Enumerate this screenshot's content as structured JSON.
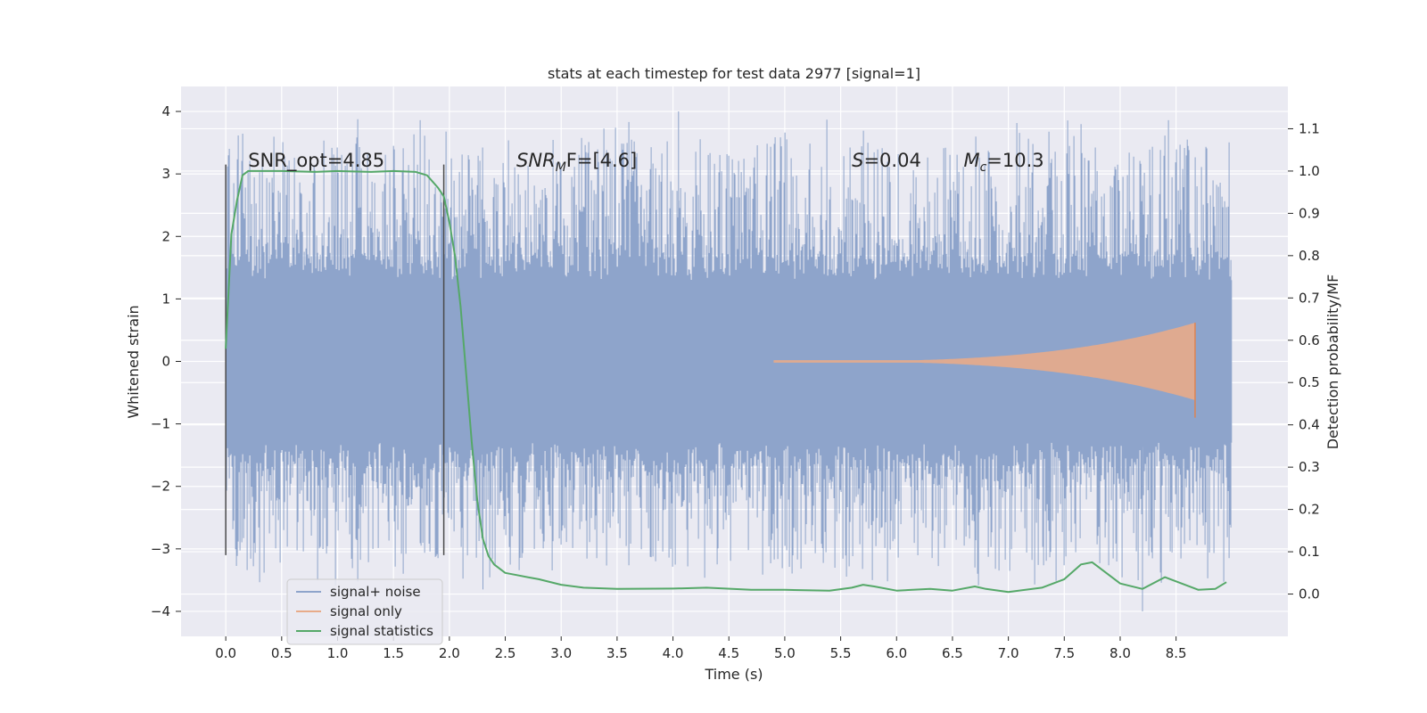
{
  "chart_data": {
    "type": "line",
    "title": "stats at each timestep for test data 2977 [signal=1]",
    "xlabel": "Time (s)",
    "ylabel": "Whitened strain",
    "y2label": "Detection probability/MF",
    "xlim": [
      -0.4,
      9.5
    ],
    "ylim": [
      -4.4,
      4.4
    ],
    "y2lim": [
      -0.1,
      1.2
    ],
    "xticks": [
      "0.0",
      "0.5",
      "1.0",
      "1.5",
      "2.0",
      "2.5",
      "3.0",
      "3.5",
      "4.0",
      "4.5",
      "5.0",
      "5.5",
      "6.0",
      "6.5",
      "7.0",
      "7.5",
      "8.0",
      "8.5"
    ],
    "yticks": [
      "4",
      "3",
      "2",
      "1",
      "0",
      "−1",
      "−2",
      "−3",
      "−4"
    ],
    "y2ticks": [
      "1.1",
      "1.0",
      "0.9",
      "0.8",
      "0.7",
      "0.6",
      "0.5",
      "0.4",
      "0.3",
      "0.2",
      "0.1",
      "0.0"
    ],
    "noise_range": [
      0.0,
      9.0
    ],
    "noise_band": 1.3,
    "noise_peaks_pos": 4.0,
    "noise_peaks_neg": -4.0,
    "signal_only": {
      "start": 4.9,
      "merger": 8.67,
      "peak_amplitude": 0.62,
      "min_at_merger": -0.9
    },
    "window_lines": [
      0.0,
      1.95
    ],
    "window_y_range": [
      -3.1,
      3.15
    ],
    "series": [
      {
        "name": "signal+ noise",
        "color": "#8ea4cb"
      },
      {
        "name": "signal only",
        "color": "#dd8452"
      },
      {
        "name": "signal statistics",
        "color": "#55a868",
        "x": [
          0.0,
          0.05,
          0.1,
          0.15,
          0.2,
          0.3,
          0.5,
          0.8,
          1.0,
          1.3,
          1.5,
          1.7,
          1.8,
          1.9,
          1.95,
          2.0,
          2.05,
          2.1,
          2.15,
          2.2,
          2.25,
          2.3,
          2.35,
          2.4,
          2.5,
          2.6,
          2.7,
          2.8,
          3.0,
          3.2,
          3.5,
          4.0,
          4.3,
          4.7,
          5.0,
          5.4,
          5.6,
          5.7,
          5.8,
          6.0,
          6.3,
          6.5,
          6.7,
          6.8,
          7.0,
          7.3,
          7.5,
          7.65,
          7.75,
          7.85,
          8.0,
          8.2,
          8.4,
          8.5,
          8.7,
          8.85,
          8.95
        ],
        "y": [
          0.58,
          0.85,
          0.93,
          0.99,
          1.0,
          1.0,
          1.0,
          0.998,
          1.0,
          0.998,
          1.0,
          0.998,
          0.99,
          0.96,
          0.94,
          0.88,
          0.8,
          0.68,
          0.52,
          0.36,
          0.22,
          0.13,
          0.09,
          0.07,
          0.05,
          0.045,
          0.04,
          0.035,
          0.022,
          0.015,
          0.012,
          0.013,
          0.015,
          0.01,
          0.01,
          0.008,
          0.015,
          0.022,
          0.018,
          0.008,
          0.012,
          0.008,
          0.018,
          0.012,
          0.005,
          0.015,
          0.035,
          0.07,
          0.075,
          0.055,
          0.025,
          0.012,
          0.04,
          0.03,
          0.01,
          0.012,
          0.028
        ]
      }
    ],
    "annotations": [
      {
        "name": "snr-opt",
        "text": "SNR_opt=4.85",
        "x": 0.2
      },
      {
        "name": "snr-mf",
        "base": "SNR",
        "sub": "M",
        "rest": "F=[4.6]",
        "x": 2.6
      },
      {
        "name": "s-value",
        "base": "S",
        "rest": "=0.04",
        "x": 5.6
      },
      {
        "name": "chirp-mass",
        "base": "M",
        "sub": "c",
        "rest": "=10.3",
        "x": 6.6
      }
    ],
    "annotation_y": 3.2,
    "legend": {
      "placement": "lower-left",
      "entries": [
        "signal+ noise",
        "signal only",
        "signal statistics"
      ]
    }
  }
}
